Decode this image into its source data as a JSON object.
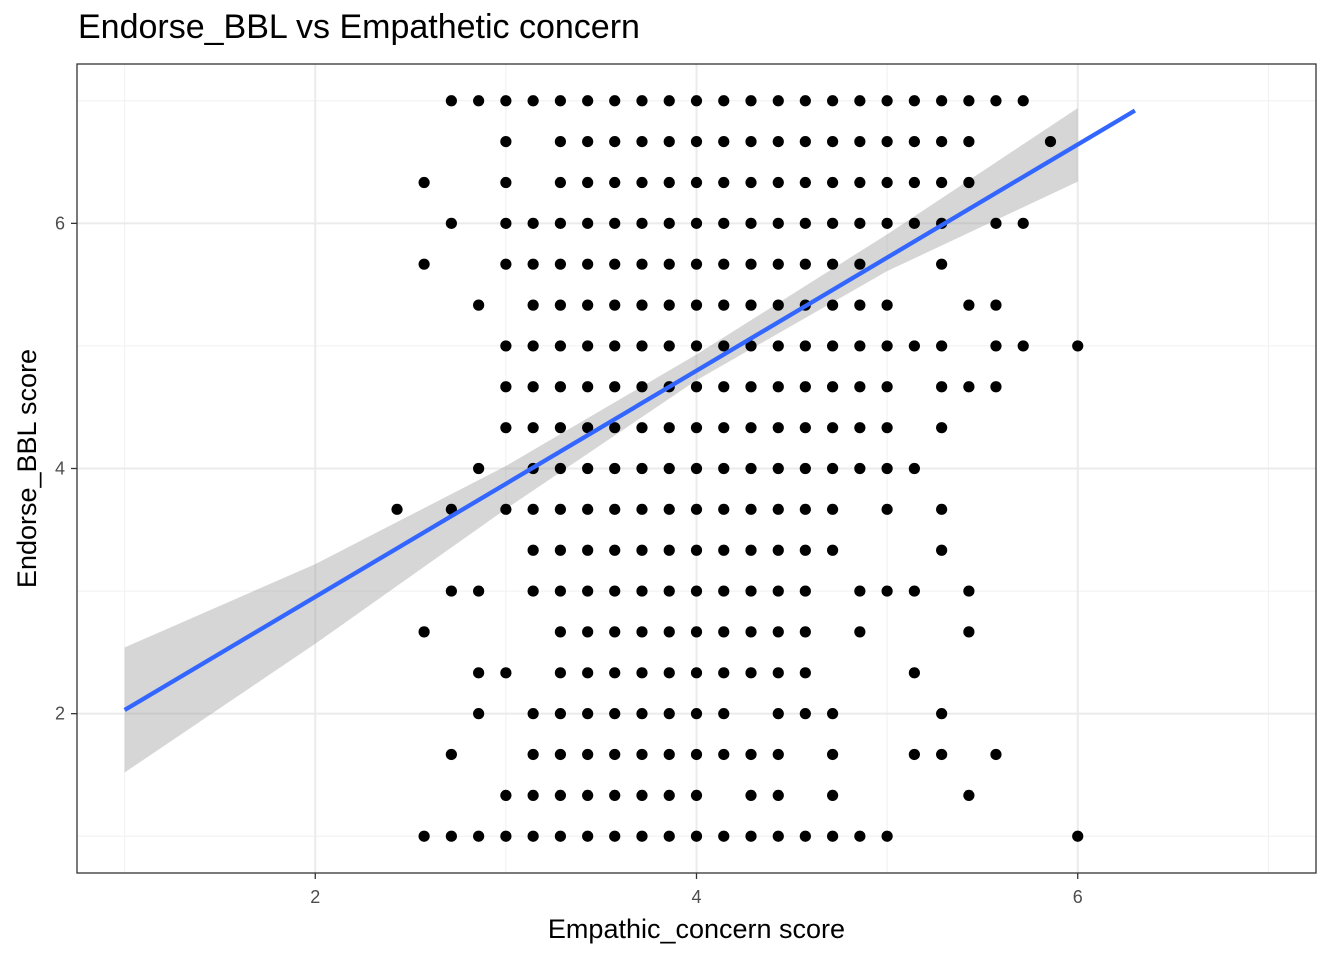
{
  "chart_data": {
    "type": "scatter",
    "title": "Endorse_BBL vs Empathetic concern",
    "xlabel": "Empathic_concern score",
    "ylabel": "Endorse_BBL score",
    "xlim": [
      0.75,
      7.25
    ],
    "ylim": [
      0.7,
      7.3
    ],
    "x_ticks": [
      2,
      4,
      6
    ],
    "y_ticks": [
      2,
      4,
      6
    ],
    "grid": true,
    "point_color": "#000000",
    "fit": {
      "method": "lm",
      "color": "#3366FF",
      "ribbon_color": "#999999",
      "line": {
        "x": [
          1.0,
          6.3
        ],
        "y": [
          2.03,
          6.92
        ]
      },
      "ci_upper": {
        "x": [
          1.0,
          2.0,
          3.0,
          4.0,
          5.0,
          6.0
        ],
        "y": [
          2.54,
          3.22,
          4.02,
          4.93,
          5.91,
          6.94
        ]
      },
      "ci_lower": {
        "x": [
          1.0,
          2.0,
          3.0,
          4.0,
          5.0,
          6.0
        ],
        "y": [
          1.52,
          2.57,
          3.67,
          4.72,
          5.61,
          6.34
        ]
      }
    },
    "rows": [
      {
        "y": 7.0,
        "x": [
          2.714,
          2.857,
          3.0,
          3.143,
          3.286,
          3.429,
          3.571,
          3.714,
          3.857,
          4.0,
          4.143,
          4.286,
          4.429,
          4.571,
          4.714,
          4.857,
          5.0,
          5.143,
          5.286,
          5.429,
          5.571,
          5.714
        ]
      },
      {
        "y": 6.667,
        "x": [
          3.0,
          3.286,
          3.429,
          3.571,
          3.714,
          3.857,
          4.0,
          4.143,
          4.286,
          4.429,
          4.571,
          4.714,
          4.857,
          5.0,
          5.143,
          5.286,
          5.429,
          5.857
        ]
      },
      {
        "y": 6.333,
        "x": [
          2.571,
          3.0,
          3.286,
          3.429,
          3.571,
          3.714,
          3.857,
          4.0,
          4.143,
          4.286,
          4.429,
          4.571,
          4.714,
          4.857,
          5.0,
          5.143,
          5.286,
          5.429
        ]
      },
      {
        "y": 6.0,
        "x": [
          2.714,
          3.0,
          3.143,
          3.286,
          3.429,
          3.571,
          3.714,
          3.857,
          4.0,
          4.143,
          4.286,
          4.429,
          4.571,
          4.714,
          4.857,
          5.0,
          5.143,
          5.286,
          5.571,
          5.714
        ]
      },
      {
        "y": 5.667,
        "x": [
          2.571,
          3.0,
          3.143,
          3.286,
          3.429,
          3.571,
          3.714,
          3.857,
          4.0,
          4.143,
          4.286,
          4.429,
          4.571,
          4.714,
          4.857,
          5.286
        ]
      },
      {
        "y": 5.333,
        "x": [
          2.857,
          3.143,
          3.286,
          3.429,
          3.571,
          3.714,
          3.857,
          4.0,
          4.143,
          4.286,
          4.429,
          4.571,
          4.714,
          4.857,
          5.0,
          5.429,
          5.571
        ]
      },
      {
        "y": 5.0,
        "x": [
          3.0,
          3.143,
          3.286,
          3.429,
          3.571,
          3.714,
          3.857,
          4.0,
          4.143,
          4.286,
          4.429,
          4.571,
          4.714,
          4.857,
          5.0,
          5.143,
          5.286,
          5.571,
          5.714,
          6.0
        ]
      },
      {
        "y": 4.667,
        "x": [
          3.0,
          3.143,
          3.286,
          3.429,
          3.571,
          3.714,
          3.857,
          4.0,
          4.143,
          4.286,
          4.429,
          4.571,
          4.714,
          4.857,
          5.0,
          5.286,
          5.429,
          5.571
        ]
      },
      {
        "y": 4.333,
        "x": [
          3.0,
          3.143,
          3.286,
          3.429,
          3.571,
          3.714,
          3.857,
          4.0,
          4.143,
          4.286,
          4.429,
          4.571,
          4.714,
          4.857,
          5.0,
          5.286
        ]
      },
      {
        "y": 4.0,
        "x": [
          2.857,
          3.143,
          3.286,
          3.429,
          3.571,
          3.714,
          3.857,
          4.0,
          4.143,
          4.286,
          4.429,
          4.571,
          4.714,
          4.857,
          5.0,
          5.143
        ]
      },
      {
        "y": 3.667,
        "x": [
          2.429,
          2.714,
          3.0,
          3.143,
          3.286,
          3.429,
          3.571,
          3.714,
          3.857,
          4.0,
          4.143,
          4.286,
          4.429,
          4.571,
          4.714,
          5.0,
          5.286
        ]
      },
      {
        "y": 3.333,
        "x": [
          3.143,
          3.286,
          3.429,
          3.571,
          3.714,
          3.857,
          4.0,
          4.143,
          4.286,
          4.429,
          4.571,
          4.714,
          5.286
        ]
      },
      {
        "y": 3.0,
        "x": [
          2.714,
          2.857,
          3.143,
          3.286,
          3.429,
          3.571,
          3.714,
          3.857,
          4.0,
          4.143,
          4.286,
          4.429,
          4.571,
          4.857,
          5.0,
          5.143,
          5.429
        ]
      },
      {
        "y": 2.667,
        "x": [
          2.571,
          3.286,
          3.429,
          3.571,
          3.714,
          3.857,
          4.0,
          4.143,
          4.286,
          4.429,
          4.571,
          4.857,
          5.429
        ]
      },
      {
        "y": 2.333,
        "x": [
          2.857,
          3.0,
          3.286,
          3.429,
          3.571,
          3.714,
          3.857,
          4.0,
          4.143,
          4.286,
          4.429,
          4.571,
          5.143
        ]
      },
      {
        "y": 2.0,
        "x": [
          2.857,
          3.143,
          3.286,
          3.429,
          3.571,
          3.714,
          3.857,
          4.0,
          4.143,
          4.429,
          4.571,
          4.714,
          5.286
        ]
      },
      {
        "y": 1.667,
        "x": [
          2.714,
          3.143,
          3.286,
          3.429,
          3.571,
          3.714,
          3.857,
          4.0,
          4.143,
          4.286,
          4.429,
          4.714,
          5.143,
          5.286,
          5.571
        ]
      },
      {
        "y": 1.333,
        "x": [
          3.0,
          3.143,
          3.286,
          3.429,
          3.571,
          3.714,
          3.857,
          4.0,
          4.286,
          4.429,
          4.714,
          5.429
        ]
      },
      {
        "y": 1.0,
        "x": [
          2.571,
          2.714,
          2.857,
          3.0,
          3.143,
          3.286,
          3.429,
          3.571,
          3.714,
          3.857,
          4.0,
          4.143,
          4.286,
          4.429,
          4.571,
          4.714,
          4.857,
          5.0,
          6.0
        ]
      }
    ]
  }
}
